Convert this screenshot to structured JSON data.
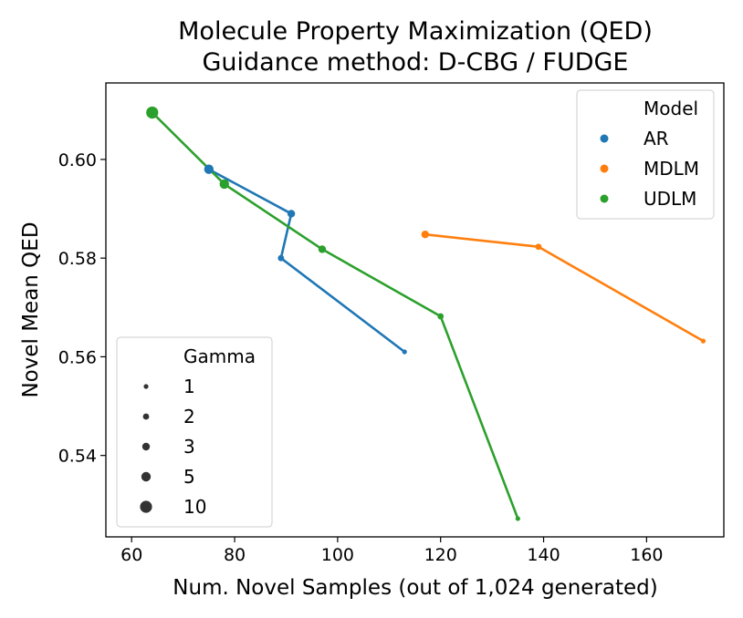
{
  "chart_data": {
    "type": "line",
    "title": "Molecule Property Maximization (QED)",
    "subtitle": "Guidance method: D-CBG / FUDGE",
    "xlabel": "Num. Novel Samples (out of 1,024 generated)",
    "ylabel": "Novel Mean QED",
    "xlim": [
      55,
      175
    ],
    "ylim": [
      0.5235,
      0.6155
    ],
    "xticks": [
      60,
      80,
      100,
      120,
      140,
      160
    ],
    "yticks": [
      0.54,
      0.56,
      0.58,
      0.6
    ],
    "ytick_labels": [
      "0.54",
      "0.56",
      "0.58",
      "0.60"
    ],
    "series": [
      {
        "name": "AR",
        "color": "#1f77b4",
        "points": [
          {
            "x": 113,
            "y": 0.561,
            "gamma": 1
          },
          {
            "x": 89,
            "y": 0.58,
            "gamma": 2
          },
          {
            "x": 91,
            "y": 0.589,
            "gamma": 3
          },
          {
            "x": 75,
            "y": 0.598,
            "gamma": 5
          }
        ]
      },
      {
        "name": "MDLM",
        "color": "#ff7f0e",
        "points": [
          {
            "x": 171,
            "y": 0.5632,
            "gamma": 1
          },
          {
            "x": 139,
            "y": 0.5823,
            "gamma": 2
          },
          {
            "x": 117,
            "y": 0.5848,
            "gamma": 3
          }
        ]
      },
      {
        "name": "UDLM",
        "color": "#2ca02c",
        "points": [
          {
            "x": 135,
            "y": 0.5272,
            "gamma": 1
          },
          {
            "x": 120,
            "y": 0.5682,
            "gamma": 2
          },
          {
            "x": 97,
            "y": 0.5818,
            "gamma": 3
          },
          {
            "x": 78,
            "y": 0.595,
            "gamma": 5
          },
          {
            "x": 64,
            "y": 0.6095,
            "gamma": 10
          }
        ]
      }
    ],
    "legend_model": {
      "title": "Model",
      "placement": "top-right",
      "entries": [
        {
          "label": "AR",
          "color": "#1f77b4"
        },
        {
          "label": "MDLM",
          "color": "#ff7f0e"
        },
        {
          "label": "UDLM",
          "color": "#2ca02c"
        }
      ]
    },
    "legend_gamma": {
      "title": "Gamma",
      "placement": "bottom-left",
      "entries": [
        {
          "label": "1",
          "gamma": 1
        },
        {
          "label": "2",
          "gamma": 2
        },
        {
          "label": "3",
          "gamma": 3
        },
        {
          "label": "5",
          "gamma": 5
        },
        {
          "label": "10",
          "gamma": 10
        }
      ]
    }
  }
}
